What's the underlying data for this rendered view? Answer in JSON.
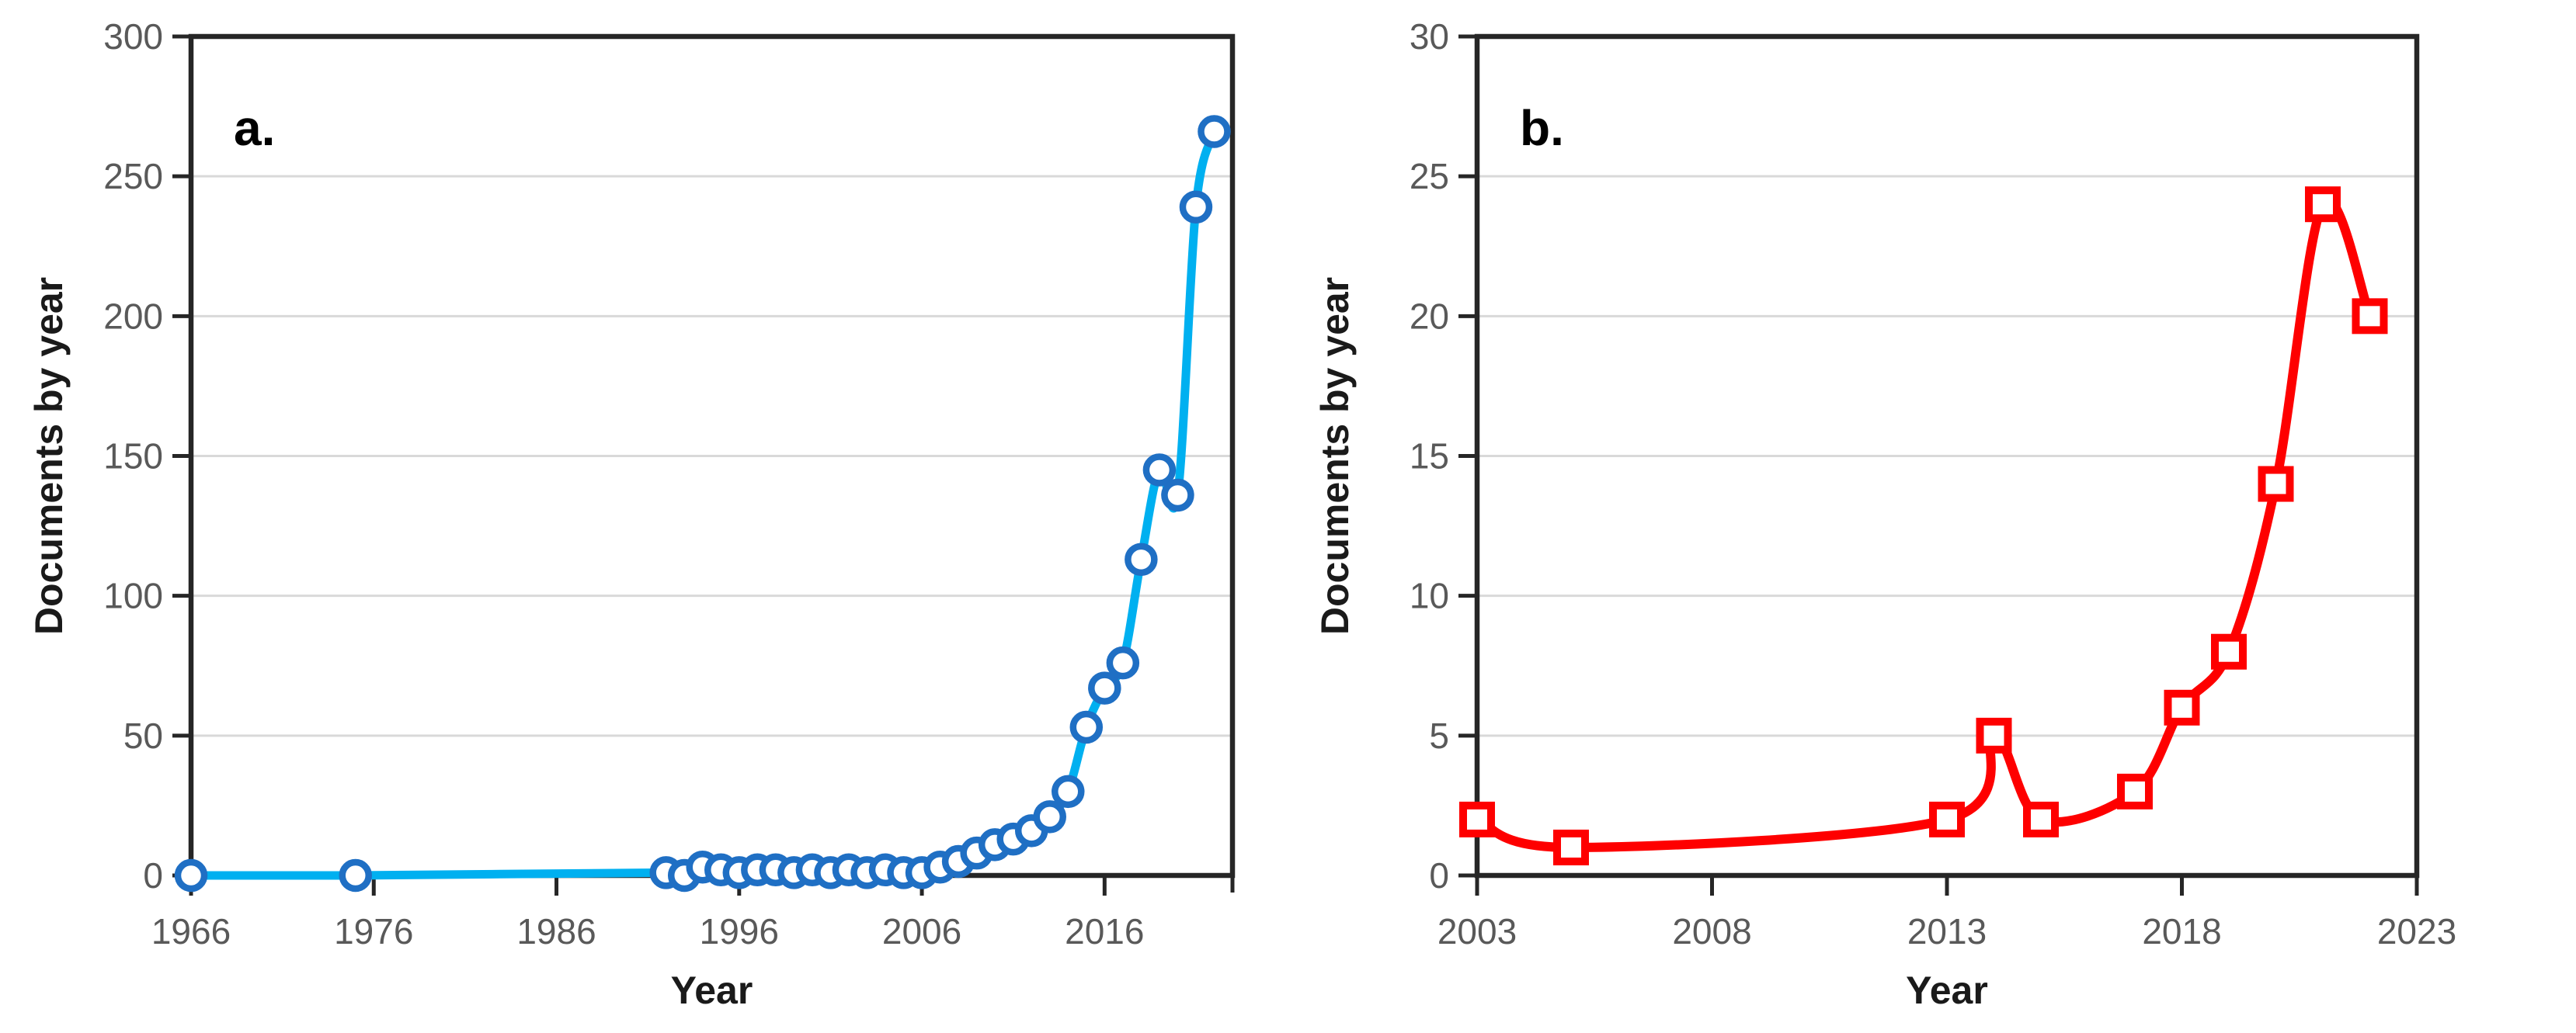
{
  "figure": {
    "background": "#ffffff"
  },
  "colors": {
    "axis": "#262626",
    "grid": "#d9d9d9",
    "tick_label": "#595959",
    "axis_title": "#1a1a1a",
    "panel_letter": "#000000",
    "marker_fill": "#ffffff"
  },
  "chart_data": [
    {
      "id": "a",
      "type": "line",
      "panel_label": "a.",
      "xlabel": "Year",
      "ylabel": "Documents by year",
      "xlim": [
        1966,
        2023
      ],
      "ylim": [
        0,
        300
      ],
      "xticks": [
        1966,
        1976,
        1986,
        1996,
        2006,
        2016
      ],
      "yticks": [
        0,
        50,
        100,
        150,
        200,
        250,
        300
      ],
      "grid": "horizontal",
      "legend": "none",
      "edge_tick": true,
      "line_color": "#00b0f0",
      "line_width": 11,
      "marker": "circle",
      "marker_color": "#1f6fc4",
      "x": [
        1966,
        1975,
        1992,
        1993,
        1994,
        1995,
        1996,
        1997,
        1998,
        1999,
        2000,
        2001,
        2002,
        2003,
        2004,
        2005,
        2006,
        2007,
        2008,
        2009,
        2010,
        2011,
        2012,
        2013,
        2014,
        2015,
        2016,
        2017,
        2018,
        2019,
        2020,
        2021,
        2022
      ],
      "y": [
        0,
        0,
        1,
        0,
        3,
        2,
        1,
        2,
        2,
        1,
        2,
        1,
        2,
        1,
        2,
        1,
        1,
        3,
        5,
        8,
        11,
        13,
        16,
        21,
        30,
        53,
        67,
        76,
        113,
        145,
        136,
        239,
        266
      ]
    },
    {
      "id": "b",
      "type": "line",
      "panel_label": "b.",
      "xlabel": "Year",
      "ylabel": "Documents by year",
      "xlim": [
        2003,
        2023
      ],
      "ylim": [
        0,
        30
      ],
      "xticks": [
        2003,
        2008,
        2013,
        2018,
        2023
      ],
      "yticks": [
        0,
        5,
        10,
        15,
        20,
        25,
        30
      ],
      "grid": "horizontal",
      "legend": "none",
      "edge_tick": false,
      "line_color": "#fe0000",
      "line_width": 12,
      "marker": "square",
      "marker_color": "#fe0000",
      "x": [
        2003,
        2005,
        2013,
        2014,
        2015,
        2017,
        2018,
        2019,
        2020,
        2021,
        2022
      ],
      "y": [
        2,
        1,
        2,
        5,
        2,
        3,
        6,
        8,
        14,
        24,
        20
      ]
    }
  ]
}
